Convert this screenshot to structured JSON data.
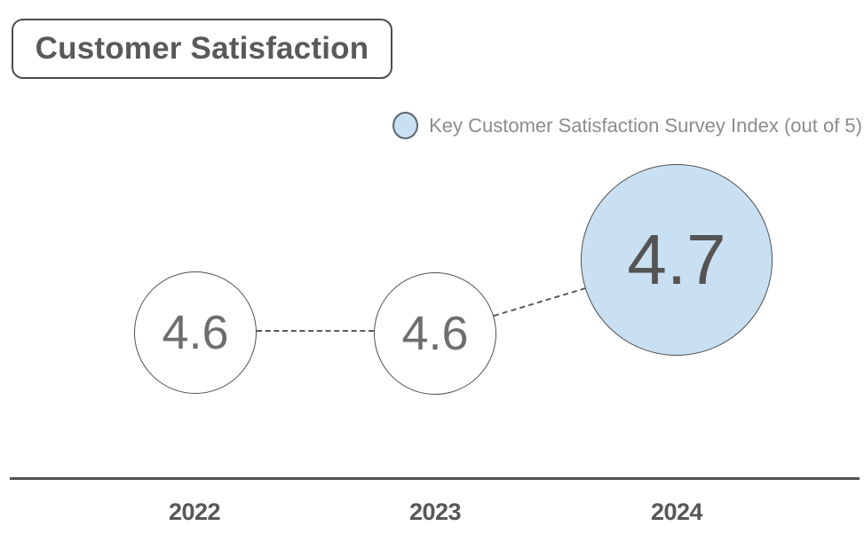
{
  "title": "Customer Satisfaction",
  "legend": {
    "label": "Key Customer Satisfaction Survey Index (out of 5)"
  },
  "points": [
    {
      "year": "2022",
      "value": "4.6"
    },
    {
      "year": "2023",
      "value": "4.6"
    },
    {
      "year": "2024",
      "value": "4.7"
    }
  ],
  "chart_data": {
    "type": "scatter",
    "subtype": "bubble-line",
    "categories": [
      "2022",
      "2023",
      "2024"
    ],
    "series": [
      {
        "name": "Key Customer Satisfaction Survey Index (out of 5)",
        "values": [
          4.6,
          4.6,
          4.7
        ]
      }
    ],
    "title": "Customer Satisfaction",
    "xlabel": "",
    "ylabel": "",
    "ylim": [
      0,
      5
    ],
    "grid": false,
    "legend_position": "top-right",
    "connector_style": "dashed",
    "highlight": {
      "category": "2024",
      "value": 4.7,
      "style": "filled, enlarged"
    }
  },
  "colors": {
    "accent_fill": "#c9e0f2",
    "outline_dark": "#4f4f4f",
    "title_text": "#595959",
    "legend_text": "#8c8c8c",
    "value_text": "#6e6e6e",
    "axis_line": "#525252",
    "background": "#ffffff"
  }
}
